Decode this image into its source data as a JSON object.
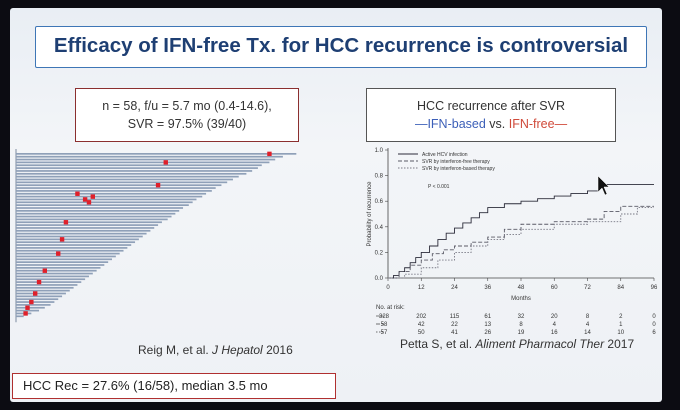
{
  "title": "Efficacy of IFN-free Tx. for HCC recurrence is controversial",
  "stats_box": {
    "line1": "n = 58, f/u = 5.7 mo (0.4-14.6),",
    "line2": "SVR  = 97.5% (39/40)"
  },
  "km_box": {
    "title": "HCC recurrence after SVR",
    "dash_left": "—",
    "ifn_based": "IFN-based",
    "vs": " vs. ",
    "ifn_free": "IFN-free",
    "dash_right": "—"
  },
  "reig_citation": {
    "authors": "Reig M, et al. ",
    "journal": "J Hepatol",
    "year": " 2016"
  },
  "petta_citation": {
    "authors": "Petta S, et al. ",
    "journal": "Aliment Pharmacol Ther",
    "year": " 2017"
  },
  "recurrence_box": {
    "text": "HCC Rec  = 27.6% (16/58), median 3.5 mo"
  },
  "colors": {
    "title_border": "#3e76b6",
    "title_text": "#1e3f73",
    "ifn_based": "#3c5fb8",
    "ifn_free": "#d04a3a",
    "event_marker": "#e0202a",
    "swimmer_bar": "#8fa0b8"
  },
  "chart_data": [
    {
      "type": "bar",
      "orientation": "horizontal",
      "description_source": "swimmer plot of follow-up per patient with red recurrence markers",
      "patients": 58,
      "followup_months": [
        14.6,
        13.9,
        13.5,
        13.2,
        12.8,
        12.6,
        12.3,
        12.0,
        11.6,
        11.3,
        11.0,
        10.7,
        10.4,
        10.2,
        9.9,
        9.7,
        9.4,
        9.2,
        9.0,
        8.7,
        8.5,
        8.3,
        8.1,
        7.9,
        7.6,
        7.4,
        7.2,
        7.0,
        6.8,
        6.6,
        6.4,
        6.2,
        6.0,
        5.8,
        5.6,
        5.4,
        5.2,
        5.0,
        4.8,
        4.6,
        4.4,
        4.2,
        4.0,
        3.8,
        3.6,
        3.4,
        3.2,
        3.0,
        2.8,
        2.6,
        2.4,
        2.2,
        2.0,
        1.8,
        1.5,
        1.2,
        0.8,
        0.4
      ],
      "recurrence_markers": [
        {
          "patient": 1,
          "month": 13.2
        },
        {
          "patient": 4,
          "month": 7.8
        },
        {
          "patient": 12,
          "month": 7.4
        },
        {
          "patient": 15,
          "month": 3.2
        },
        {
          "patient": 16,
          "month": 4.0
        },
        {
          "patient": 17,
          "month": 3.6
        },
        {
          "patient": 18,
          "month": 3.8
        },
        {
          "patient": 25,
          "month": 2.6
        },
        {
          "patient": 31,
          "month": 2.4
        },
        {
          "patient": 36,
          "month": 2.2
        },
        {
          "patient": 42,
          "month": 1.5
        },
        {
          "patient": 46,
          "month": 1.2
        },
        {
          "patient": 50,
          "month": 1.0
        },
        {
          "patient": 53,
          "month": 0.8
        },
        {
          "patient": 55,
          "month": 0.6
        },
        {
          "patient": 57,
          "month": 0.5
        }
      ],
      "xlim": [
        0,
        15
      ]
    },
    {
      "type": "line",
      "subtype": "kaplan-meier",
      "xlabel": "Months",
      "ylabel": "Probability of recurrence",
      "xlim": [
        0,
        96
      ],
      "ylim": [
        0,
        1.0
      ],
      "x_ticks": [
        0,
        12,
        24,
        36,
        48,
        60,
        72,
        84,
        96
      ],
      "y_ticks": [
        "0.0",
        "0.2",
        "0.4",
        "0.6",
        "0.8",
        "1.0"
      ],
      "annotation": "P < 0.001",
      "series": [
        {
          "name": "Active HCV infection",
          "style": "solid",
          "points": [
            [
              0,
              0
            ],
            [
              2,
              0.02
            ],
            [
              4,
              0.05
            ],
            [
              6,
              0.08
            ],
            [
              8,
              0.12
            ],
            [
              10,
              0.16
            ],
            [
              12,
              0.2
            ],
            [
              15,
              0.25
            ],
            [
              18,
              0.3
            ],
            [
              21,
              0.35
            ],
            [
              24,
              0.39
            ],
            [
              27,
              0.43
            ],
            [
              30,
              0.47
            ],
            [
              33,
              0.51
            ],
            [
              36,
              0.55
            ],
            [
              42,
              0.58
            ],
            [
              48,
              0.6
            ],
            [
              54,
              0.62
            ],
            [
              60,
              0.64
            ],
            [
              66,
              0.66
            ],
            [
              72,
              0.68
            ],
            [
              76,
              0.73
            ],
            [
              84,
              0.73
            ],
            [
              96,
              0.73
            ]
          ]
        },
        {
          "name": "SVR by interferon-free therapy",
          "style": "dashed",
          "points": [
            [
              0,
              0
            ],
            [
              4,
              0.05
            ],
            [
              8,
              0.1
            ],
            [
              12,
              0.14
            ],
            [
              16,
              0.19
            ],
            [
              20,
              0.22
            ],
            [
              24,
              0.25
            ],
            [
              30,
              0.28
            ],
            [
              36,
              0.32
            ],
            [
              42,
              0.38
            ],
            [
              48,
              0.42
            ],
            [
              60,
              0.44
            ],
            [
              72,
              0.46
            ],
            [
              78,
              0.52
            ],
            [
              84,
              0.56
            ],
            [
              96,
              0.56
            ]
          ]
        },
        {
          "name": "SVR by interferon-based therapy",
          "style": "dotted",
          "points": [
            [
              0,
              0
            ],
            [
              6,
              0.03
            ],
            [
              12,
              0.08
            ],
            [
              18,
              0.14
            ],
            [
              24,
              0.2
            ],
            [
              30,
              0.25
            ],
            [
              36,
              0.3
            ],
            [
              42,
              0.34
            ],
            [
              48,
              0.38
            ],
            [
              60,
              0.42
            ],
            [
              72,
              0.44
            ],
            [
              84,
              0.5
            ],
            [
              90,
              0.55
            ],
            [
              96,
              0.55
            ]
          ]
        }
      ],
      "risk_table": {
        "label": "No. at risk:",
        "rows": [
          [
            "328",
            "202",
            "115",
            "61",
            "32",
            "20",
            "8",
            "2",
            "0"
          ],
          [
            "58",
            "42",
            "22",
            "13",
            "8",
            "4",
            "4",
            "1",
            "0"
          ],
          [
            "57",
            "50",
            "41",
            "26",
            "19",
            "16",
            "14",
            "10",
            "6"
          ]
        ]
      }
    }
  ]
}
